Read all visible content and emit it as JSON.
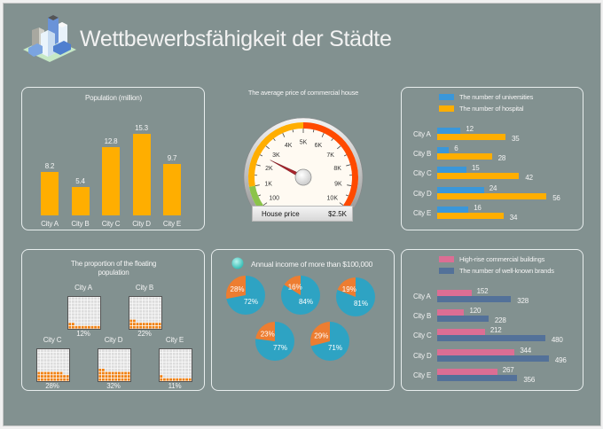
{
  "title": "Wettbewerbsfähigkeit der Städte",
  "logo_icon": "city-buildings-icon",
  "colors": {
    "background": "#829190",
    "population_bar": "#FFAE00",
    "universities": "#3A97DA",
    "hospitals": "#FFAE00",
    "pie_main": "#2EA3C3",
    "pie_other": "#ED7D31",
    "waffle_fill": "#F08010",
    "highrise": "#DC6E94",
    "brands": "#537199"
  },
  "chart_data": [
    {
      "id": "population",
      "type": "bar",
      "title": "Population (million)",
      "categories": [
        "City A",
        "City B",
        "City C",
        "City D",
        "City E"
      ],
      "values": [
        8.2,
        5.4,
        12.8,
        15.3,
        9.7
      ],
      "value_labels": [
        "8.2",
        "5.4",
        "12.8",
        "15.3",
        "9.7"
      ],
      "ylim": [
        0,
        16
      ]
    },
    {
      "id": "house-price",
      "type": "gauge",
      "title": "The average price of commercial house",
      "tick_labels": [
        "100",
        "1K",
        "2K",
        "3K",
        "4K",
        "5K",
        "6K",
        "7K",
        "8K",
        "9K",
        "10K"
      ],
      "range": [
        0,
        10000
      ],
      "value": 2500,
      "readout_label": "House price",
      "readout_value": "$2.5K",
      "bands": [
        {
          "from": 0,
          "to": 1000,
          "color": "#8BC34A"
        },
        {
          "from": 1000,
          "to": 5000,
          "color": "#FFAE00"
        },
        {
          "from": 5000,
          "to": 10000,
          "color": "#FF4A00"
        }
      ]
    },
    {
      "id": "universities-hospitals",
      "type": "bar",
      "orientation": "horizontal",
      "categories": [
        "City A",
        "City B",
        "City C",
        "City D",
        "City E"
      ],
      "series": [
        {
          "name": "The number of universities",
          "values": [
            12,
            6,
            15,
            24,
            16
          ]
        },
        {
          "name": "The number of hospital",
          "values": [
            35,
            28,
            42,
            56,
            34
          ]
        }
      ],
      "xlim": [
        0,
        60
      ],
      "legend": "top"
    },
    {
      "id": "floating-population",
      "type": "waffle",
      "title": "The proportion of the floating population",
      "categories": [
        "City A",
        "City B",
        "City C",
        "City D",
        "City E"
      ],
      "values": [
        12,
        22,
        28,
        32,
        11
      ],
      "value_labels": [
        "12%",
        "22%",
        "28%",
        "32%",
        "11%"
      ]
    },
    {
      "id": "annual-income",
      "type": "pie",
      "title": "Annual income of more than $100,000",
      "pies": [
        {
          "main": 72,
          "other": 28,
          "main_label": "72%",
          "other_label": "28%"
        },
        {
          "main": 84,
          "other": 16,
          "main_label": "84%",
          "other_label": "16%"
        },
        {
          "main": 81,
          "other": 19,
          "main_label": "81%",
          "other_label": "19%"
        },
        {
          "main": 77,
          "other": 23,
          "main_label": "77%",
          "other_label": "23%"
        },
        {
          "main": 71,
          "other": 29,
          "main_label": "71%",
          "other_label": "29%"
        }
      ]
    },
    {
      "id": "buildings-brands",
      "type": "bar",
      "orientation": "horizontal",
      "categories": [
        "City A",
        "City B",
        "City C",
        "City D",
        "City E"
      ],
      "series": [
        {
          "name": "High-rise commercial buildings",
          "values": [
            152,
            120,
            212,
            344,
            267
          ]
        },
        {
          "name": "The number of well-known brands",
          "values": [
            328,
            228,
            480,
            496,
            356
          ]
        }
      ],
      "xlim": [
        0,
        520
      ],
      "legend": "top"
    }
  ]
}
